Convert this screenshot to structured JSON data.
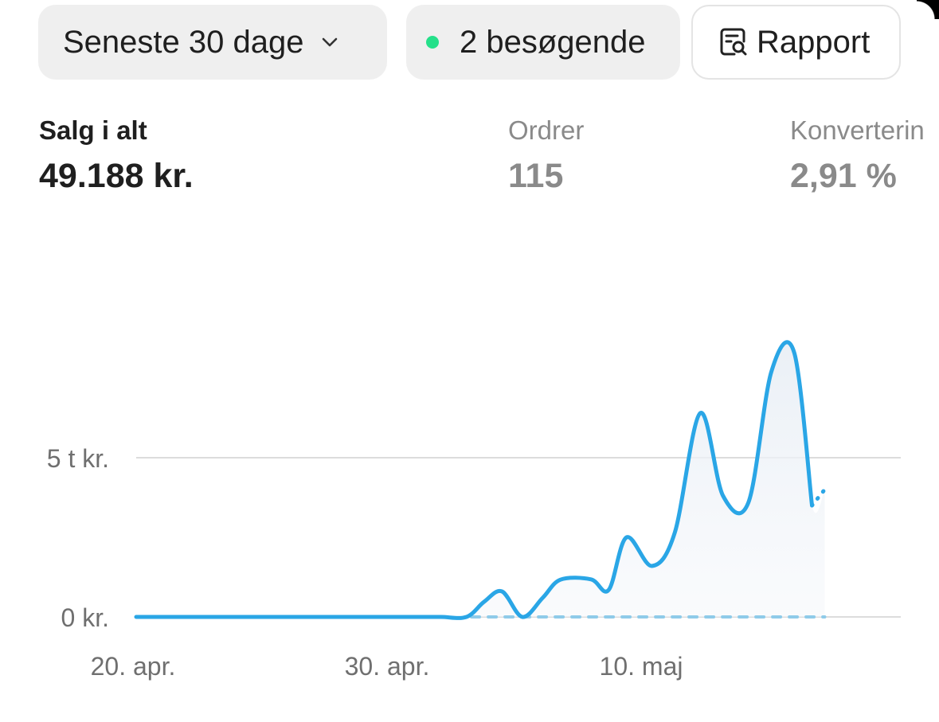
{
  "toolbar": {
    "range_label": "Seneste 30 dage",
    "range_icon": "chevron-down-icon",
    "visitors_label": "2 besøgende",
    "visitors_status_color": "#25e08a",
    "report_label": "Rapport",
    "report_icon": "report-search-icon"
  },
  "metrics": {
    "sales_label": "Salg i alt",
    "sales_value": "49.188 kr.",
    "orders_label": "Ordrer",
    "orders_value": "115",
    "conversion_label": "Konverterin",
    "conversion_value": "2,91 %"
  },
  "chart_data": {
    "type": "line",
    "y_ticks": [
      {
        "value": 0,
        "label": "0 kr."
      },
      {
        "value": 5000,
        "label": "5 t kr."
      }
    ],
    "x_ticks": [
      {
        "day": 0,
        "label": "20. apr."
      },
      {
        "day": 10,
        "label": "30. apr."
      },
      {
        "day": 20,
        "label": "10. maj"
      }
    ],
    "ylim": [
      0,
      9000
    ],
    "xlim": [
      0,
      30
    ],
    "line_color": "#2aa6e6",
    "series": [
      {
        "style": "solid",
        "points": [
          [
            0,
            0
          ],
          [
            1,
            0
          ],
          [
            2,
            0
          ],
          [
            3,
            0
          ],
          [
            4,
            0
          ],
          [
            5,
            0
          ],
          [
            6,
            0
          ],
          [
            7,
            0
          ],
          [
            8,
            0
          ],
          [
            9,
            0
          ],
          [
            10,
            0
          ],
          [
            11,
            0
          ],
          [
            12,
            0
          ],
          [
            13,
            0
          ],
          [
            13.7,
            480
          ],
          [
            14.4,
            800
          ],
          [
            15.2,
            0
          ],
          [
            16,
            600
          ],
          [
            16.7,
            1170
          ],
          [
            17.9,
            1180
          ],
          [
            18.6,
            850
          ],
          [
            19.3,
            2500
          ],
          [
            20.3,
            1600
          ],
          [
            21.2,
            2650
          ],
          [
            22.2,
            6400
          ],
          [
            23.1,
            3800
          ],
          [
            24.1,
            3600
          ],
          [
            25,
            7700
          ],
          [
            25.9,
            8300
          ],
          [
            26.6,
            3500
          ]
        ]
      },
      {
        "style": "dotted",
        "points": [
          [
            26.6,
            3500
          ],
          [
            27.1,
            4000
          ]
        ]
      },
      {
        "style": "dashed",
        "points": [
          [
            13.2,
            0
          ],
          [
            27.1,
            0
          ]
        ]
      }
    ]
  }
}
